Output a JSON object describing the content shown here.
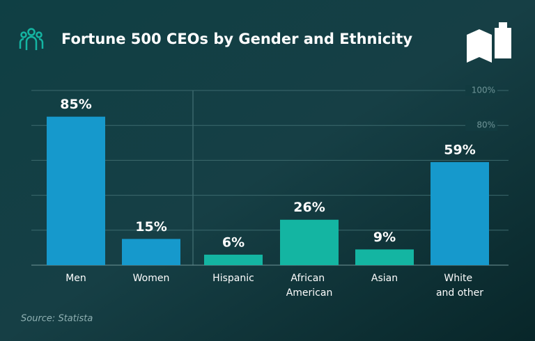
{
  "chart_data": {
    "type": "bar",
    "title": "Fortune 500 CEOs by Gender and Ethnicity",
    "categories": [
      "Men",
      "Women",
      "Hispanic",
      "African American",
      "Asian",
      "White and other"
    ],
    "values": [
      85,
      15,
      6,
      26,
      9,
      59
    ],
    "value_labels": [
      "85%",
      "15%",
      "6%",
      "26%",
      "9%",
      "59%"
    ],
    "colors": [
      "#1699cc",
      "#1699cc",
      "#14b5a2",
      "#14b5a2",
      "#14b5a2",
      "#1699cc"
    ],
    "ylim": [
      0,
      100
    ],
    "yticks": [
      {
        "value": 80,
        "label": "80%"
      },
      {
        "value": 100,
        "label": "100%"
      }
    ],
    "grid_values": [
      20,
      40,
      60,
      80,
      100
    ],
    "grid": true,
    "source": "Source: Statista"
  }
}
